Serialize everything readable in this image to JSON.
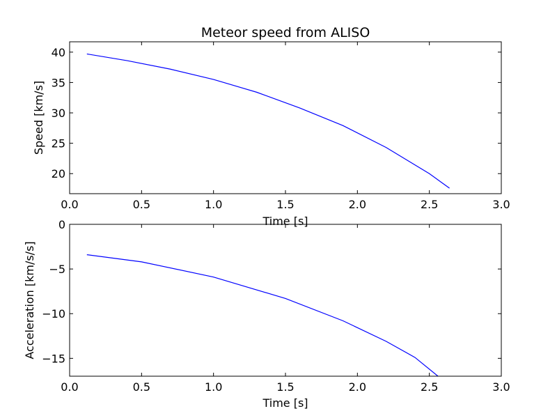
{
  "chart_data": [
    {
      "type": "line",
      "title": "Meteor speed from  ALISO",
      "xlabel": "Time [s]",
      "ylabel": "Speed [km/s]",
      "xlim": [
        0.0,
        3.0
      ],
      "ylim": [
        16.7,
        41.7
      ],
      "xticks": [
        "0.0",
        "0.5",
        "1.0",
        "1.5",
        "2.0",
        "2.5",
        "3.0"
      ],
      "yticks": [
        "20",
        "25",
        "30",
        "35",
        "40"
      ],
      "grid": false,
      "color": "#0000ff",
      "series": [
        {
          "x": [
            0.12,
            0.4,
            0.7,
            1.0,
            1.3,
            1.6,
            1.9,
            2.2,
            2.5,
            2.64
          ],
          "y": [
            39.7,
            38.6,
            37.2,
            35.5,
            33.4,
            30.8,
            27.9,
            24.3,
            20.0,
            17.6
          ]
        }
      ]
    },
    {
      "type": "line",
      "title": "",
      "xlabel": "Time [s]",
      "ylabel": "Acceleration [km/s/s]",
      "xlim": [
        0.0,
        3.0
      ],
      "ylim": [
        -17.0,
        0.0
      ],
      "xticks": [
        "0.0",
        "0.5",
        "1.0",
        "1.5",
        "2.0",
        "2.5",
        "3.0"
      ],
      "yticks": [
        "0",
        "−5",
        "−10",
        "−15"
      ],
      "grid": false,
      "color": "#0000ff",
      "series": [
        {
          "x": [
            0.12,
            0.5,
            1.0,
            1.5,
            1.9,
            2.2,
            2.4,
            2.56
          ],
          "y": [
            -3.4,
            -4.2,
            -5.9,
            -8.3,
            -10.8,
            -13.1,
            -14.9,
            -17.0
          ]
        }
      ]
    }
  ]
}
